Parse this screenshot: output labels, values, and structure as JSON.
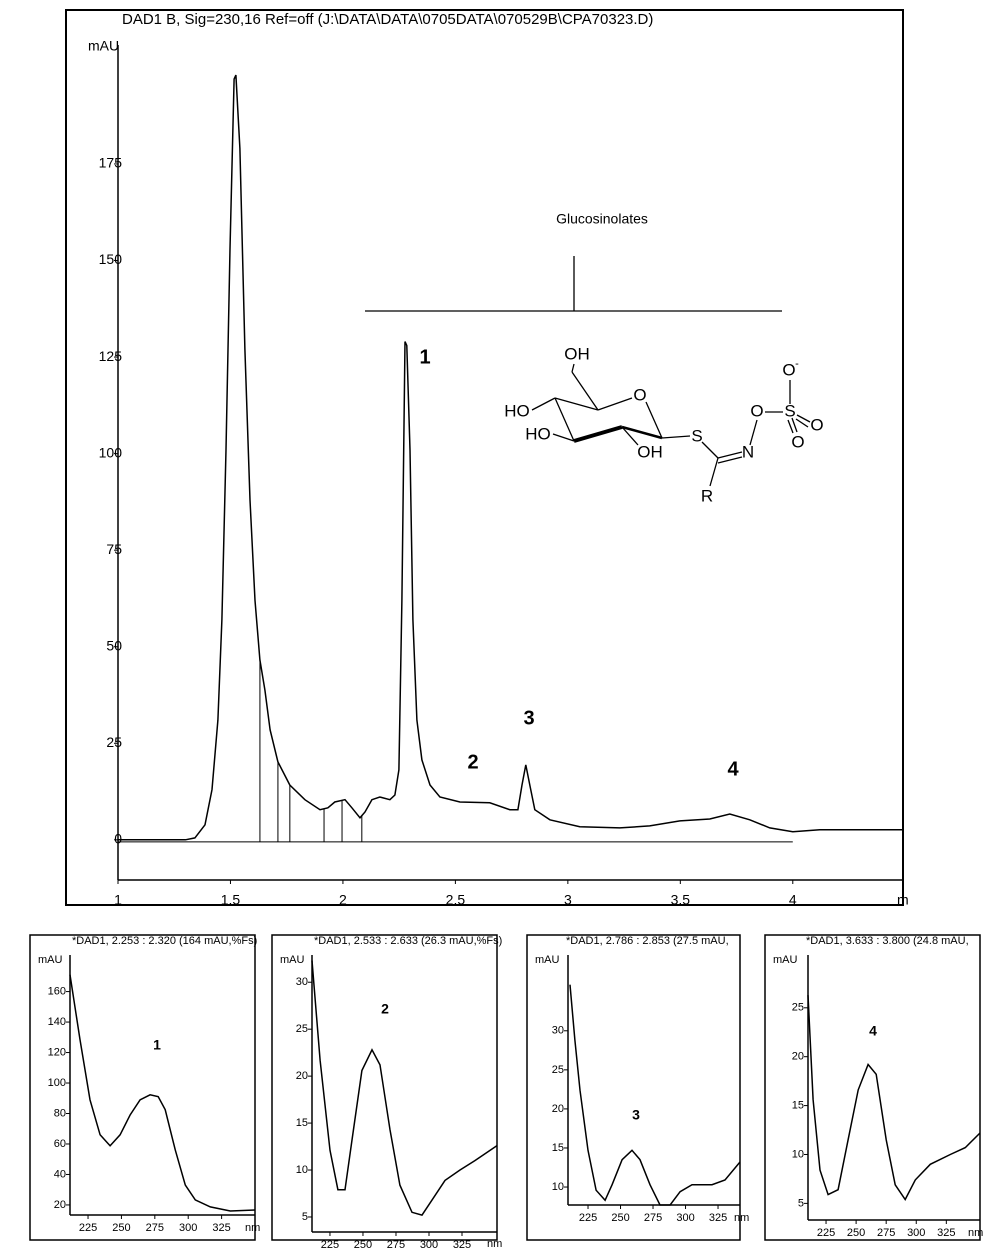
{
  "chart_data": [
    {
      "type": "line",
      "title": "DAD1 B, Sig=230,16 Ref=off (J:\\DATA\\DATA\\0705DATA\\070529B\\CPA70323.D)",
      "ylabel": "mAU",
      "xlabel": "m",
      "color": "#000000",
      "x": [
        1,
        1.3,
        1.342,
        1.387,
        1.418,
        1.444,
        1.462,
        1.48,
        1.498,
        1.516,
        1.524,
        1.542,
        1.564,
        1.587,
        1.609,
        1.631,
        1.653,
        1.676,
        1.711,
        1.764,
        1.831,
        1.898,
        1.933,
        1.964,
        2.009,
        2.04,
        2.076,
        2.098,
        2.129,
        2.164,
        2.209,
        2.231,
        2.249,
        2.262,
        2.276,
        2.284,
        2.298,
        2.311,
        2.329,
        2.351,
        2.387,
        2.431,
        2.52,
        2.653,
        2.742,
        2.778,
        2.796,
        2.813,
        2.831,
        2.853,
        2.92,
        3.053,
        3.231,
        3.364,
        3.498,
        3.631,
        3.72,
        3.809,
        3.898,
        4.0,
        4.12,
        4.49
      ],
      "values": [
        0,
        0,
        0.5,
        3.9,
        13,
        31,
        57,
        101,
        153,
        197,
        198,
        179,
        127,
        88,
        62,
        46.6,
        38.8,
        28.5,
        20.2,
        14.2,
        10.4,
        7.8,
        8.3,
        9.8,
        10.4,
        8.3,
        5.7,
        7.2,
        10.4,
        11.1,
        10.4,
        11.6,
        18.1,
        62,
        129,
        128,
        101,
        57,
        31,
        20.7,
        14.2,
        11.1,
        9.8,
        9.6,
        7.8,
        7.8,
        14.2,
        19.4,
        14.2,
        7.8,
        5.2,
        3.4,
        3.1,
        3.6,
        4.9,
        5.4,
        6.7,
        5.2,
        3.1,
        2.1,
        2.6,
        2.6
      ],
      "drop_lines": [
        1.631,
        1.711,
        1.764,
        1.916,
        1.996,
        2.084
      ],
      "xlim": [
        1,
        4.49
      ],
      "ylim": [
        -10.4,
        205.8
      ],
      "xticks": [
        1,
        1.5,
        2,
        2.5,
        3,
        3.5,
        4
      ],
      "yticks": [
        0,
        25,
        50,
        75,
        100,
        125,
        150,
        175
      ],
      "annotations": [
        "Glucosinolates",
        "1",
        "2",
        "3",
        "4"
      ],
      "structure_labels": [
        "OH",
        "O",
        "HO",
        "HO",
        "OH",
        "S",
        "N",
        "O",
        "S",
        "O",
        "-",
        "O",
        "O",
        "R"
      ]
    },
    {
      "type": "line",
      "title": "*DAD1, 2.253 : 2.320 (164 mAU,%Fs)",
      "ylabel": "mAU",
      "xlabel": "nm",
      "color": "#000000",
      "x": [
        211.5,
        219,
        226.5,
        234,
        241.5,
        249,
        256.5,
        264,
        271.5,
        277.5,
        282.8,
        290.3,
        297.8,
        305.3,
        316.5,
        331.5,
        350
      ],
      "values": [
        171,
        128.5,
        89,
        66,
        58.8,
        66,
        79,
        89,
        92.3,
        91,
        82.5,
        56,
        33,
        23.3,
        18.7,
        16,
        16.7
      ],
      "xlim": [
        211.5,
        350
      ],
      "ylim": [
        13.4,
        184
      ],
      "xticks": [
        225,
        250,
        275,
        300,
        325
      ],
      "yticks": [
        20,
        40,
        60,
        80,
        100,
        120,
        140,
        160
      ],
      "annotations": [
        "1"
      ]
    },
    {
      "type": "line",
      "title": "*DAD1, 2.533 : 2.633 (26.3 mAU,%Fs)",
      "ylabel": "mAU",
      "xlabel": "nm",
      "color": "#000000",
      "x": [
        211.4,
        217.5,
        225,
        231,
        236.4,
        241.7,
        249.2,
        256.8,
        262.9,
        270.5,
        278,
        287.1,
        294.7,
        302.3,
        312.1,
        323.5,
        334.8,
        351.5
      ],
      "values": [
        32.3,
        21.7,
        12.1,
        7.9,
        7.9,
        13.2,
        20.6,
        22.8,
        21.2,
        14.3,
        8.4,
        5.5,
        5.2,
        6.8,
        8.9,
        10,
        11,
        12.6
      ],
      "xlim": [
        211.4,
        351.5
      ],
      "ylim": [
        3.4,
        32.9
      ],
      "xticks": [
        225,
        250,
        275,
        300,
        325
      ],
      "yticks": [
        5,
        10,
        15,
        20,
        25,
        30
      ],
      "annotations": [
        "2"
      ]
    },
    {
      "type": "line",
      "title": "*DAD1, 2.786 : 2.853 (27.5 mAU,",
      "ylabel": "mAU",
      "xlabel": "nm",
      "color": "#000000",
      "x": [
        211.1,
        214.9,
        218.8,
        225,
        231.2,
        238.1,
        243.5,
        251.2,
        258.8,
        265,
        272.7,
        280.4,
        288.1,
        295.8,
        305,
        320.4,
        330.4,
        341.9
      ],
      "values": [
        35.9,
        28.8,
        22.4,
        14.7,
        9.6,
        8.3,
        10.3,
        13.5,
        14.7,
        13.5,
        10.3,
        7.7,
        7.7,
        9.4,
        10.3,
        10.3,
        10.9,
        13.2
      ],
      "xlim": [
        209.6,
        341.9
      ],
      "ylim": [
        7.7,
        39.7
      ],
      "xticks": [
        225,
        250,
        275,
        300,
        325
      ],
      "yticks": [
        10,
        15,
        20,
        25,
        30
      ],
      "annotations": [
        "3"
      ]
    },
    {
      "type": "line",
      "title": "*DAD1, 3.633 : 3.800 (24.8 mAU,",
      "ylabel": "mAU",
      "xlabel": "nm",
      "color": "#000000",
      "x": [
        210,
        214.2,
        220,
        226.7,
        235,
        243.3,
        251.7,
        260,
        266.7,
        275,
        282.5,
        290.8,
        299.2,
        311.7,
        328.3,
        340.8,
        353
      ],
      "values": [
        26.3,
        15.6,
        8.4,
        5.9,
        6.4,
        11.5,
        16.6,
        19.2,
        18.2,
        11.5,
        6.9,
        5.4,
        7.4,
        9,
        10,
        10.7,
        12.2
      ],
      "xlim": [
        210,
        353
      ],
      "ylim": [
        3.3,
        30.4
      ],
      "xticks": [
        225,
        250,
        275,
        300,
        325
      ],
      "yticks": [
        5,
        10,
        15,
        20,
        25
      ],
      "annotations": [
        "4"
      ]
    }
  ]
}
